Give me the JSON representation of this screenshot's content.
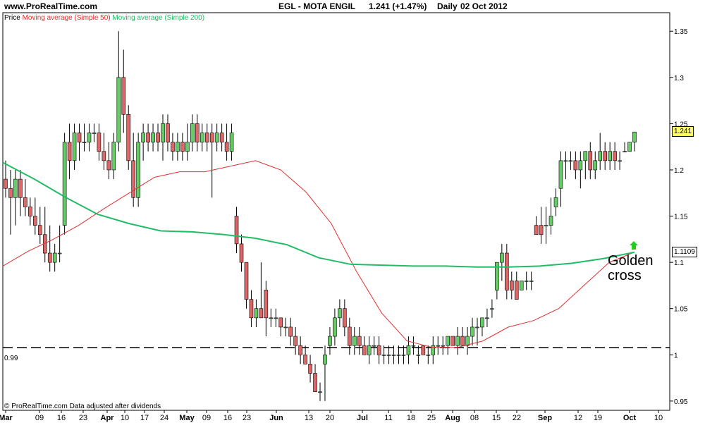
{
  "header": {
    "site": "www.ProRealTime.com",
    "instrument": "EGL - MOTA ENGIL",
    "quote": "1.241 (+1.47%)",
    "period": "Daily",
    "date": "02 Oct 2012"
  },
  "legend": {
    "price": "Price",
    "ma50": "Moving average (Simple 50)",
    "ma200": "Moving average (Simple 200)"
  },
  "footer": "© ProRealTime.com  Data adjusted after dividends",
  "annotation": {
    "line1": "Golden",
    "line2": "cross"
  },
  "price_tag": "1.241",
  "ma200_tag": "1.1109",
  "support_label": "0.99",
  "colors": {
    "up": "#66cc66",
    "down": "#dd6666",
    "ma50": "#e03030",
    "ma200": "#22bb66",
    "arrow": "#22cc22",
    "price_tag_bg": "#ffff66"
  },
  "chart_data": {
    "type": "candlestick",
    "ylim": [
      0.94,
      1.37
    ],
    "y_ticks": [
      0.95,
      1,
      1.05,
      1.1,
      1.15,
      1.2,
      1.25,
      1.3,
      1.35
    ],
    "y_tick_labels": [
      "0.95",
      "1",
      "1.05",
      "1.1",
      "1.15",
      "1.2",
      "1.25",
      "1.3",
      "1.35"
    ],
    "x_tick_labels": [
      "Mar",
      "09",
      "16",
      "23",
      "Apr",
      "10",
      "17",
      "24",
      "May",
      "09",
      "16",
      "23",
      "Jun",
      "13",
      "20",
      "Jul",
      "11",
      "18",
      "25",
      "Aug",
      "08",
      "15",
      "22",
      "Sep",
      "12",
      "19",
      "Oct",
      "10"
    ],
    "support_level": 0.99,
    "candles": [
      [
        1.19,
        1.21,
        1.17,
        1.18
      ],
      [
        1.18,
        1.2,
        1.13,
        1.17
      ],
      [
        1.17,
        1.2,
        1.14,
        1.19
      ],
      [
        1.19,
        1.2,
        1.15,
        1.17
      ],
      [
        1.17,
        1.19,
        1.15,
        1.16
      ],
      [
        1.16,
        1.17,
        1.14,
        1.15
      ],
      [
        1.15,
        1.17,
        1.13,
        1.14
      ],
      [
        1.14,
        1.16,
        1.12,
        1.13
      ],
      [
        1.13,
        1.16,
        1.1,
        1.11
      ],
      [
        1.11,
        1.14,
        1.09,
        1.1
      ],
      [
        1.1,
        1.12,
        1.09,
        1.11
      ],
      [
        1.11,
        1.14,
        1.1,
        1.11
      ],
      [
        1.14,
        1.24,
        1.13,
        1.23
      ],
      [
        1.23,
        1.25,
        1.19,
        1.21
      ],
      [
        1.21,
        1.25,
        1.2,
        1.24
      ],
      [
        1.24,
        1.25,
        1.21,
        1.23
      ],
      [
        1.23,
        1.25,
        1.22,
        1.23
      ],
      [
        1.23,
        1.25,
        1.22,
        1.24
      ],
      [
        1.24,
        1.25,
        1.23,
        1.24
      ],
      [
        1.24,
        1.25,
        1.21,
        1.22
      ],
      [
        1.22,
        1.24,
        1.2,
        1.21
      ],
      [
        1.21,
        1.23,
        1.19,
        1.2
      ],
      [
        1.2,
        1.24,
        1.19,
        1.23
      ],
      [
        1.23,
        1.35,
        1.22,
        1.3
      ],
      [
        1.3,
        1.33,
        1.24,
        1.26
      ],
      [
        1.26,
        1.27,
        1.2,
        1.21
      ],
      [
        1.21,
        1.24,
        1.16,
        1.17
      ],
      [
        1.17,
        1.24,
        1.16,
        1.23
      ],
      [
        1.23,
        1.25,
        1.21,
        1.24
      ],
      [
        1.24,
        1.25,
        1.22,
        1.23
      ],
      [
        1.23,
        1.25,
        1.22,
        1.24
      ],
      [
        1.24,
        1.25,
        1.22,
        1.23
      ],
      [
        1.23,
        1.26,
        1.21,
        1.25
      ],
      [
        1.25,
        1.26,
        1.22,
        1.23
      ],
      [
        1.23,
        1.24,
        1.21,
        1.22
      ],
      [
        1.22,
        1.24,
        1.21,
        1.23
      ],
      [
        1.23,
        1.24,
        1.21,
        1.22
      ],
      [
        1.22,
        1.25,
        1.21,
        1.23
      ],
      [
        1.23,
        1.26,
        1.22,
        1.25
      ],
      [
        1.25,
        1.26,
        1.22,
        1.23
      ],
      [
        1.23,
        1.25,
        1.22,
        1.24
      ],
      [
        1.24,
        1.25,
        1.22,
        1.23
      ],
      [
        1.24,
        1.25,
        1.17,
        1.23
      ],
      [
        1.23,
        1.25,
        1.22,
        1.24
      ],
      [
        1.24,
        1.25,
        1.22,
        1.23
      ],
      [
        1.23,
        1.25,
        1.21,
        1.22
      ],
      [
        1.22,
        1.25,
        1.21,
        1.24
      ],
      [
        1.15,
        1.16,
        1.11,
        1.12
      ],
      [
        1.12,
        1.13,
        1.09,
        1.1
      ],
      [
        1.1,
        1.1,
        1.05,
        1.06
      ],
      [
        1.06,
        1.07,
        1.03,
        1.04
      ],
      [
        1.04,
        1.06,
        1.03,
        1.05
      ],
      [
        1.05,
        1.1,
        1.04,
        1.04
      ],
      [
        1.07,
        1.08,
        1.02,
        1.04
      ],
      [
        1.04,
        1.05,
        1.03,
        1.04
      ],
      [
        1.04,
        1.05,
        1.03,
        1.04
      ],
      [
        1.04,
        1.04,
        1.02,
        1.03
      ],
      [
        1.03,
        1.04,
        1.02,
        1.03
      ],
      [
        1.03,
        1.04,
        1.01,
        1.02
      ],
      [
        1.02,
        1.03,
        1.0,
        1.01
      ],
      [
        1.01,
        1.02,
        0.99,
        1.0
      ],
      [
        1.0,
        1.01,
        0.99,
        0.99
      ],
      [
        0.99,
        1.0,
        0.97,
        0.98
      ],
      [
        0.98,
        0.99,
        0.96,
        0.96
      ],
      [
        0.96,
        0.97,
        0.95,
        0.96
      ],
      [
        0.99,
        1.01,
        0.95,
        1.0
      ],
      [
        1.01,
        1.03,
        1.0,
        1.02
      ],
      [
        1.02,
        1.05,
        1.01,
        1.04
      ],
      [
        1.04,
        1.06,
        1.03,
        1.05
      ],
      [
        1.05,
        1.06,
        1.02,
        1.03
      ],
      [
        1.03,
        1.04,
        1.0,
        1.01
      ],
      [
        1.01,
        1.03,
        1.0,
        1.02
      ],
      [
        1.02,
        1.03,
        1.0,
        1.01
      ],
      [
        1.01,
        1.02,
        1.0,
        1.0
      ],
      [
        1.0,
        1.02,
        0.99,
        1.01
      ],
      [
        1.01,
        1.02,
        1.0,
        1.01
      ],
      [
        1.01,
        1.02,
        0.99,
        1.0
      ],
      [
        1.0,
        1.01,
        0.99,
        1.0
      ],
      [
        1.0,
        1.01,
        0.99,
        1.0
      ],
      [
        1.0,
        1.01,
        0.99,
        1.0
      ],
      [
        1.0,
        1.01,
        0.99,
        1.0
      ],
      [
        1.0,
        1.01,
        0.99,
        1.0
      ],
      [
        1.0,
        1.02,
        0.99,
        1.01
      ],
      [
        1.01,
        1.02,
        1.0,
        1.01
      ],
      [
        1.0,
        1.01,
        0.99,
        1.0
      ],
      [
        1.01,
        1.01,
        1.0,
        1.0
      ],
      [
        1.0,
        1.01,
        0.99,
        1.0
      ],
      [
        1.0,
        1.02,
        0.99,
        1.01
      ],
      [
        1.01,
        1.02,
        1.0,
        1.01
      ],
      [
        1.01,
        1.02,
        1.0,
        1.01
      ],
      [
        1.01,
        1.02,
        1.0,
        1.02
      ],
      [
        1.02,
        1.02,
        1.01,
        1.01
      ],
      [
        1.01,
        1.03,
        1.0,
        1.02
      ],
      [
        1.02,
        1.03,
        1.01,
        1.01
      ],
      [
        1.01,
        1.03,
        1.0,
        1.02
      ],
      [
        1.02,
        1.04,
        1.01,
        1.03
      ],
      [
        1.03,
        1.04,
        1.01,
        1.03
      ],
      [
        1.03,
        1.04,
        1.02,
        1.04
      ],
      [
        1.04,
        1.05,
        1.03,
        1.04
      ],
      [
        1.05,
        1.06,
        1.04,
        1.05
      ],
      [
        1.07,
        1.1,
        1.06,
        1.1
      ],
      [
        1.1,
        1.12,
        1.08,
        1.11
      ],
      [
        1.11,
        1.12,
        1.06,
        1.07
      ],
      [
        1.08,
        1.09,
        1.06,
        1.07
      ],
      [
        1.08,
        1.09,
        1.06,
        1.06
      ],
      [
        1.07,
        1.08,
        1.07,
        1.08
      ],
      [
        1.08,
        1.09,
        1.07,
        1.08
      ],
      [
        1.08,
        1.09,
        1.07,
        1.08
      ],
      [
        1.14,
        1.15,
        1.13,
        1.13
      ],
      [
        1.14,
        1.16,
        1.12,
        1.13
      ],
      [
        1.14,
        1.16,
        1.12,
        1.14
      ],
      [
        1.14,
        1.17,
        1.13,
        1.15
      ],
      [
        1.16,
        1.18,
        1.15,
        1.17
      ],
      [
        1.18,
        1.22,
        1.16,
        1.21
      ],
      [
        1.21,
        1.22,
        1.19,
        1.21
      ],
      [
        1.21,
        1.22,
        1.2,
        1.21
      ],
      [
        1.21,
        1.22,
        1.19,
        1.2
      ],
      [
        1.2,
        1.22,
        1.18,
        1.21
      ],
      [
        1.21,
        1.22,
        1.19,
        1.22
      ],
      [
        1.22,
        1.23,
        1.19,
        1.2
      ],
      [
        1.2,
        1.22,
        1.19,
        1.21
      ],
      [
        1.21,
        1.24,
        1.2,
        1.22
      ],
      [
        1.22,
        1.23,
        1.2,
        1.21
      ],
      [
        1.21,
        1.23,
        1.2,
        1.22
      ],
      [
        1.22,
        1.23,
        1.2,
        1.21
      ],
      [
        1.21,
        1.22,
        1.2,
        1.21
      ],
      [
        1.22,
        1.23,
        1.22,
        1.22
      ],
      [
        1.22,
        1.23,
        1.22,
        1.23
      ],
      [
        1.23,
        1.24,
        1.22,
        1.241
      ]
    ],
    "ma50": [
      1.096,
      1.112,
      1.125,
      1.14,
      1.158,
      1.175,
      1.192,
      1.198,
      1.198,
      1.204,
      1.21,
      1.2,
      1.176,
      1.142,
      1.09,
      1.045,
      1.015,
      1.008,
      1.008,
      1.015,
      1.03,
      1.037,
      1.05,
      1.075,
      1.1,
      1.111
    ],
    "ma200": [
      1.208,
      1.19,
      1.17,
      1.152,
      1.142,
      1.134,
      1.133,
      1.13,
      1.126,
      1.119,
      1.105,
      1.098,
      1.097,
      1.096,
      1.096,
      1.095,
      1.095,
      1.096,
      1.099,
      1.104,
      1.111
    ],
    "series_names": [
      "Price",
      "Moving average (Simple 50)",
      "Moving average (Simple 200)"
    ]
  }
}
